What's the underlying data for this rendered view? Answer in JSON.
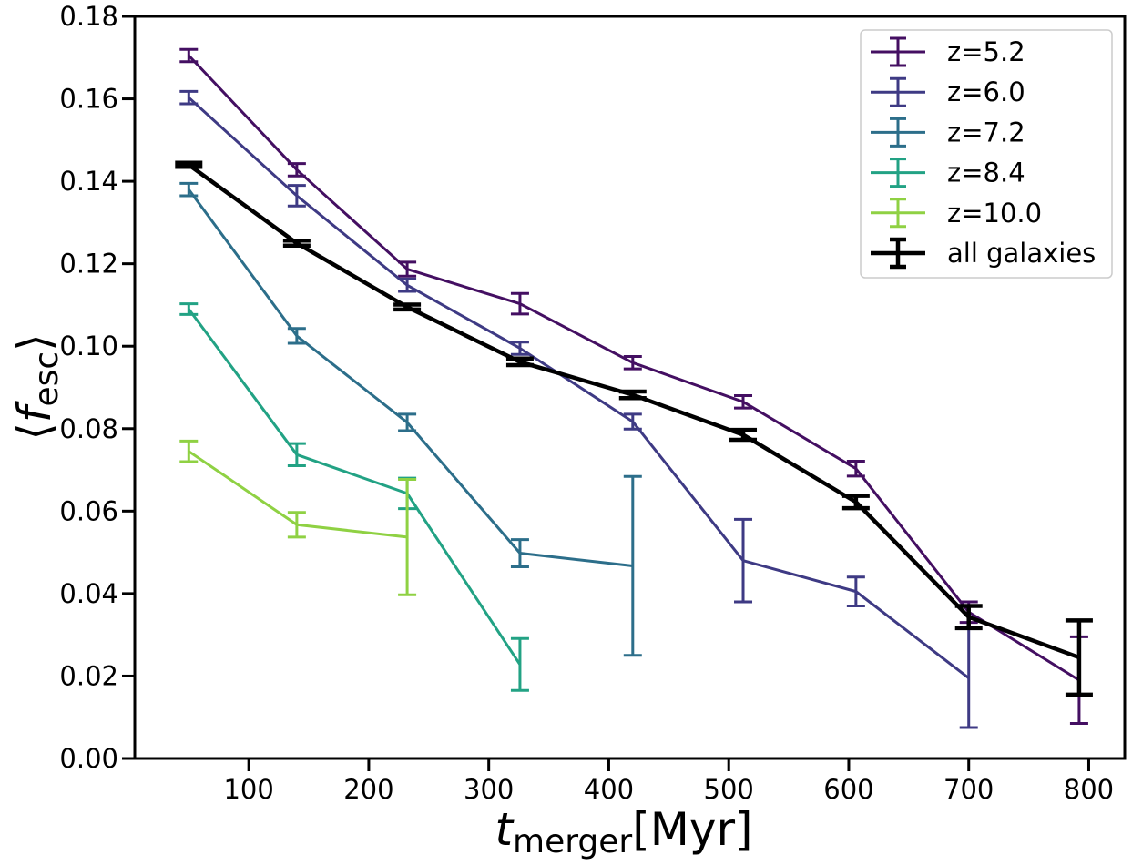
{
  "chart_data": {
    "type": "line",
    "xlabel": {
      "main": "t",
      "sub": "merger",
      "unit": "[Myr]"
    },
    "ylabel": {
      "open": "⟨",
      "main": "f",
      "sub": "esc",
      "close": "⟩"
    },
    "xlim": [
      5,
      830
    ],
    "ylim": [
      0,
      0.18
    ],
    "xticks": [
      100,
      200,
      300,
      400,
      500,
      600,
      700,
      800
    ],
    "yticks": [
      0.0,
      0.02,
      0.04,
      0.06,
      0.08,
      0.1,
      0.12,
      0.14,
      0.16,
      0.18
    ],
    "ytick_labels": [
      "0.00",
      "0.02",
      "0.04",
      "0.06",
      "0.08",
      "0.10",
      "0.12",
      "0.14",
      "0.16",
      "0.18"
    ],
    "legend_position": "upper-right",
    "grid": false,
    "series": [
      {
        "name": "z=5.2",
        "color": "#440f62",
        "x": [
          50,
          140,
          232,
          326,
          420,
          512,
          606,
          700,
          792
        ],
        "y": [
          0.1705,
          0.1428,
          0.1187,
          0.1103,
          0.096,
          0.0865,
          0.0703,
          0.0355,
          0.019
        ],
        "err": [
          0.0015,
          0.0015,
          0.0017,
          0.0025,
          0.0015,
          0.0015,
          0.0018,
          0.0025,
          0.0105
        ]
      },
      {
        "name": "z=6.0",
        "color": "#3e3a84",
        "x": [
          50,
          140,
          232,
          326,
          420,
          512,
          606,
          700
        ],
        "y": [
          0.1603,
          0.1365,
          0.1148,
          0.0995,
          0.0817,
          0.048,
          0.0405,
          0.0195
        ],
        "err": [
          0.0015,
          0.0025,
          0.0015,
          0.0015,
          0.0018,
          0.01,
          0.0035,
          0.012
        ]
      },
      {
        "name": "z=7.2",
        "color": "#2c6e8a",
        "x": [
          50,
          140,
          232,
          326,
          420
        ],
        "y": [
          0.138,
          0.1025,
          0.0815,
          0.0498,
          0.0467
        ],
        "err": [
          0.0015,
          0.0018,
          0.002,
          0.0033,
          0.0217
        ]
      },
      {
        "name": "z=8.4",
        "color": "#22a284",
        "x": [
          50,
          140,
          232,
          326
        ],
        "y": [
          0.109,
          0.0737,
          0.0643,
          0.0228
        ],
        "err": [
          0.0013,
          0.0027,
          0.0037,
          0.0063
        ]
      },
      {
        "name": "z=10.0",
        "color": "#8fd143",
        "x": [
          50,
          140,
          232
        ],
        "y": [
          0.0745,
          0.0567,
          0.0537
        ],
        "err": [
          0.0025,
          0.003,
          0.014
        ]
      },
      {
        "name": "all galaxies",
        "color": "#000000",
        "x": [
          50,
          140,
          232,
          326,
          420,
          512,
          606,
          700,
          792
        ],
        "y": [
          0.144,
          0.125,
          0.1095,
          0.0962,
          0.0882,
          0.0785,
          0.0622,
          0.0343,
          0.0245
        ],
        "err": [
          0.0005,
          0.0006,
          0.0006,
          0.0008,
          0.0008,
          0.0012,
          0.0015,
          0.0027,
          0.009
        ]
      }
    ]
  }
}
